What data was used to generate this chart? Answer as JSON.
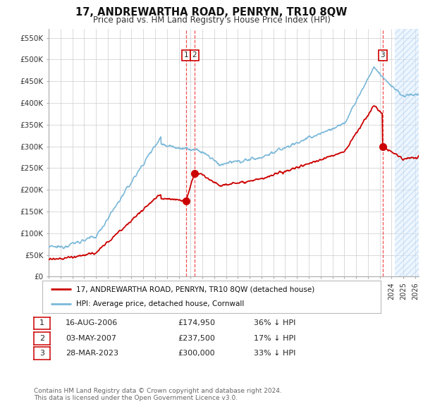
{
  "title": "17, ANDREWARTHA ROAD, PENRYN, TR10 8QW",
  "subtitle": "Price paid vs. HM Land Registry's House Price Index (HPI)",
  "ylabel_ticks": [
    "£0",
    "£50K",
    "£100K",
    "£150K",
    "£200K",
    "£250K",
    "£300K",
    "£350K",
    "£400K",
    "£450K",
    "£500K",
    "£550K"
  ],
  "ylim": [
    0,
    570000
  ],
  "xlim_start": 1995.0,
  "xlim_end": 2026.3,
  "hpi_color": "#7ab8d9",
  "price_color": "#cc0000",
  "vline_color": "#ee3333",
  "background_color": "#ffffff",
  "grid_color": "#cccccc",
  "sale1_date": 2006.62,
  "sale1_price": 174950,
  "sale2_date": 2007.33,
  "sale2_price": 237500,
  "sale3_date": 2023.24,
  "sale3_price": 300000,
  "legend_line1": "17, ANDREWARTHA ROAD, PENRYN, TR10 8QW (detached house)",
  "legend_line2": "HPI: Average price, detached house, Cornwall",
  "table_data": [
    {
      "num": "1",
      "date": "16-AUG-2006",
      "price": "£174,950",
      "change": "36% ↓ HPI"
    },
    {
      "num": "2",
      "date": "03-MAY-2007",
      "price": "£237,500",
      "change": "17% ↓ HPI"
    },
    {
      "num": "3",
      "date": "28-MAR-2023",
      "price": "£300,000",
      "change": "33% ↓ HPI"
    }
  ],
  "footnote": "Contains HM Land Registry data © Crown copyright and database right 2024.\nThis data is licensed under the Open Government Licence v3.0.",
  "hatch_start": 2024.25,
  "hatch_end": 2026.3
}
